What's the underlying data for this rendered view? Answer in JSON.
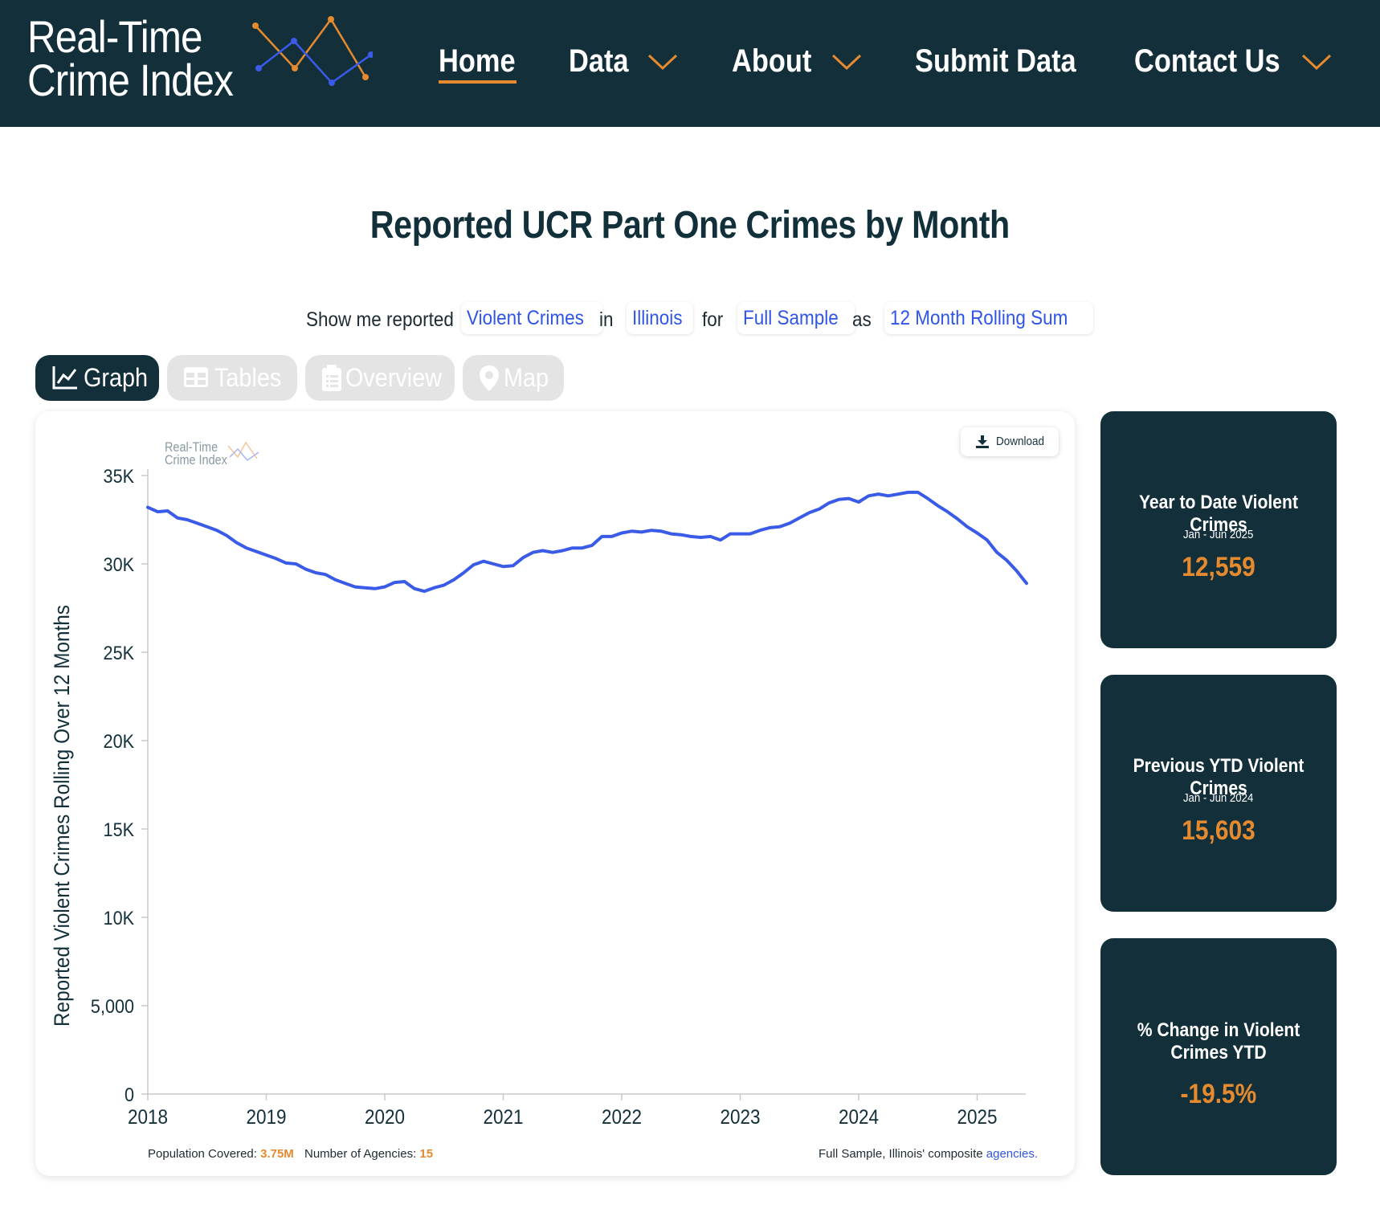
{
  "header": {
    "logo_line1": "Real-Time",
    "logo_line2": "Crime Index",
    "nav": [
      {
        "label": "Home",
        "active": true,
        "dropdown": false
      },
      {
        "label": "Data",
        "active": false,
        "dropdown": true
      },
      {
        "label": "About",
        "active": false,
        "dropdown": true
      },
      {
        "label": "Submit Data",
        "active": false,
        "dropdown": false
      },
      {
        "label": "Contact Us",
        "active": false,
        "dropdown": true
      }
    ]
  },
  "page_title": "Reported UCR Part One Crimes by Month",
  "filter": {
    "w1": "Show me reported",
    "crime": "Violent Crimes",
    "w2": "in",
    "place": "Illinois",
    "w3": "for",
    "sample": "Full Sample",
    "w4": "as",
    "measure": "12 Month Rolling Sum"
  },
  "tabs": [
    {
      "label": "Graph",
      "icon": "line-chart-icon",
      "active": true
    },
    {
      "label": "Tables",
      "icon": "table-icon",
      "active": false
    },
    {
      "label": "Overview",
      "icon": "clipboard-icon",
      "active": false
    },
    {
      "label": "Map",
      "icon": "map-pin-icon",
      "active": false
    }
  ],
  "chart_card": {
    "download_label": "Download",
    "watermark_line1": "Real-Time",
    "watermark_line2": "Crime Index",
    "footer": {
      "population_label": "Population Covered:",
      "population_value": "3.75M",
      "agencies_label": "Number of Agencies:",
      "agencies_value": "15",
      "note": "Full Sample, Illinois' composite",
      "note_link": "agencies."
    }
  },
  "chart_data": {
    "type": "line",
    "ylabel": "Reported Violent Crimes Rolling Over 12 Months",
    "xlabel": "",
    "ylim": [
      0,
      35000
    ],
    "y_ticks": [
      "0",
      "5,000",
      "10K",
      "15K",
      "20K",
      "25K",
      "30K",
      "35K"
    ],
    "x_ticks": [
      "2018",
      "2019",
      "2020",
      "2021",
      "2022",
      "2023",
      "2024",
      "2025"
    ],
    "grid": false,
    "line_color": "#3a5be8",
    "series": [
      {
        "x": [
          "2018-01",
          "2018-02",
          "2018-03",
          "2018-04",
          "2018-05",
          "2018-06",
          "2018-07",
          "2018-08",
          "2018-09",
          "2018-10",
          "2018-11",
          "2018-12",
          "2019-01",
          "2019-02",
          "2019-03",
          "2019-04",
          "2019-05",
          "2019-06",
          "2019-07",
          "2019-08",
          "2019-09",
          "2019-10",
          "2019-11",
          "2019-12",
          "2020-01",
          "2020-02",
          "2020-03",
          "2020-04",
          "2020-05",
          "2020-06",
          "2020-07",
          "2020-08",
          "2020-09",
          "2020-10",
          "2020-11",
          "2020-12",
          "2021-01",
          "2021-02",
          "2021-03",
          "2021-04",
          "2021-05",
          "2021-06",
          "2021-07",
          "2021-08",
          "2021-09",
          "2021-10",
          "2021-11",
          "2021-12",
          "2022-01",
          "2022-02",
          "2022-03",
          "2022-04",
          "2022-05",
          "2022-06",
          "2022-07",
          "2022-08",
          "2022-09",
          "2022-10",
          "2022-11",
          "2022-12",
          "2023-01",
          "2023-02",
          "2023-03",
          "2023-04",
          "2023-05",
          "2023-06",
          "2023-07",
          "2023-08",
          "2023-09",
          "2023-10",
          "2023-11",
          "2023-12",
          "2024-01",
          "2024-02",
          "2024-03",
          "2024-04",
          "2024-05",
          "2024-06",
          "2024-07",
          "2024-08",
          "2024-09",
          "2024-10",
          "2024-11",
          "2024-12",
          "2025-01",
          "2025-02",
          "2025-03",
          "2025-04",
          "2025-05",
          "2025-06"
        ],
        "values": [
          33200,
          32950,
          33000,
          32600,
          32500,
          32300,
          32100,
          31900,
          31600,
          31200,
          30900,
          30700,
          30500,
          30300,
          30050,
          30000,
          29700,
          29500,
          29400,
          29100,
          28900,
          28700,
          28650,
          28600,
          28700,
          28950,
          29000,
          28600,
          28450,
          28650,
          28800,
          29100,
          29500,
          29950,
          30150,
          30000,
          29850,
          29900,
          30350,
          30650,
          30750,
          30650,
          30750,
          30900,
          30900,
          31050,
          31550,
          31550,
          31750,
          31850,
          31800,
          31900,
          31850,
          31700,
          31650,
          31550,
          31500,
          31550,
          31350,
          31700,
          31700,
          31700,
          31900,
          32050,
          32100,
          32300,
          32600,
          32900,
          33100,
          33450,
          33650,
          33700,
          33500,
          33850,
          33950,
          33850,
          33950,
          34050,
          34050,
          33700,
          33300,
          32950,
          32550,
          32100,
          31750,
          31350,
          30650,
          30200,
          29600,
          28900
        ]
      }
    ]
  },
  "stats": [
    {
      "title": "Year to Date Violent Crimes",
      "subtitle": "Jan - Jun 2025",
      "value": "12,559"
    },
    {
      "title": "Previous YTD Violent Crimes",
      "subtitle": "Jan - Jun 2024",
      "value": "15,603"
    },
    {
      "title": "% Change in Violent Crimes YTD",
      "subtitle": "",
      "value": "-19.5%"
    }
  ],
  "colors": {
    "navy": "#13303a",
    "accent_orange": "#e58a2e",
    "link_blue": "#2f55e8",
    "line_blue": "#3a5be8",
    "tab_inactive": "#e4e4e4"
  }
}
